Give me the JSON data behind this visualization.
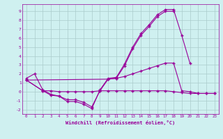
{
  "x": [
    0,
    1,
    2,
    3,
    4,
    5,
    6,
    7,
    8,
    9,
    10,
    11,
    12,
    13,
    14,
    15,
    16,
    17,
    18,
    19,
    20,
    21,
    22,
    23
  ],
  "line1": [
    1.5,
    2.0,
    0.2,
    -0.3,
    -0.5,
    -1.1,
    -1.1,
    -1.4,
    -1.9,
    0.2,
    1.5,
    1.6,
    3.1,
    5.0,
    6.5,
    7.5,
    8.6,
    9.2,
    9.2,
    6.3,
    3.2,
    null,
    null,
    null
  ],
  "line2": [
    1.3,
    null,
    0.1,
    -0.4,
    -0.5,
    -0.9,
    -0.9,
    -1.2,
    -1.7,
    0.1,
    1.4,
    1.5,
    2.9,
    4.8,
    6.3,
    7.3,
    8.4,
    9.0,
    9.0,
    null,
    null,
    null,
    null,
    null
  ],
  "line3": [
    1.3,
    null,
    null,
    null,
    null,
    null,
    null,
    null,
    null,
    null,
    1.4,
    1.5,
    1.7,
    2.0,
    2.3,
    2.6,
    2.9,
    3.2,
    3.2,
    0.1,
    0.0,
    -0.2,
    -0.2,
    -0.2
  ],
  "line4": [
    1.3,
    null,
    0.1,
    0.1,
    0.0,
    0.0,
    0.0,
    0.0,
    0.0,
    0.1,
    0.1,
    0.1,
    0.1,
    0.1,
    0.1,
    0.1,
    0.1,
    0.1,
    0.0,
    -0.1,
    -0.2,
    -0.2,
    -0.2,
    -0.2
  ],
  "line_color": "#990099",
  "background_color": "#cff0f0",
  "grid_color": "#aacccc",
  "xlabel": "Windchill (Refroidissement éolien,°C)",
  "xlim": [
    -0.5,
    23.5
  ],
  "ylim": [
    -2.5,
    9.8
  ],
  "yticks": [
    -2,
    -1,
    0,
    1,
    2,
    3,
    4,
    5,
    6,
    7,
    8,
    9
  ],
  "xticks": [
    0,
    1,
    2,
    3,
    4,
    5,
    6,
    7,
    8,
    9,
    10,
    11,
    12,
    13,
    14,
    15,
    16,
    17,
    18,
    19,
    20,
    21,
    22,
    23
  ]
}
